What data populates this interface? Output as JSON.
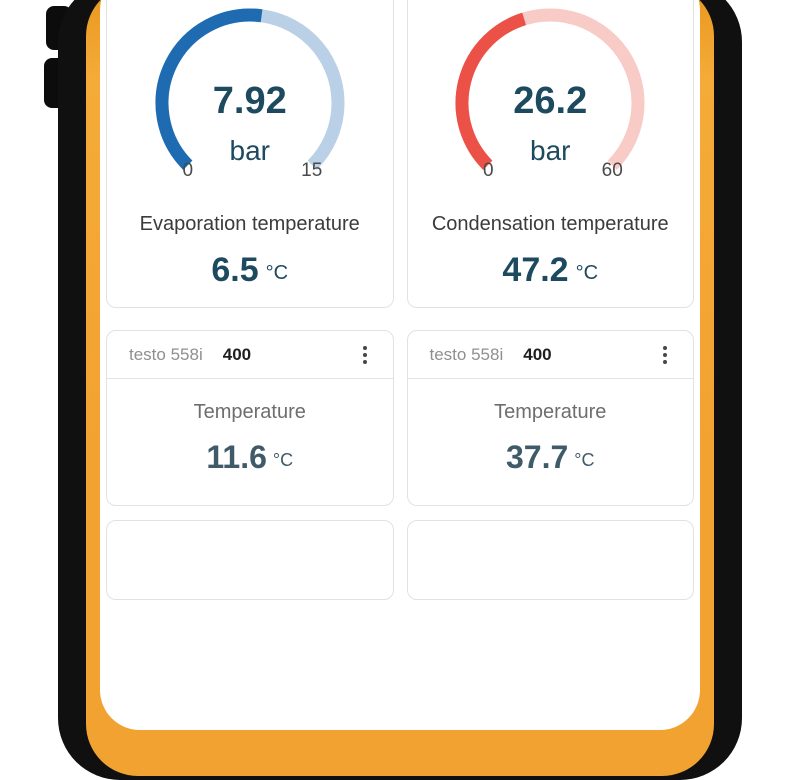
{
  "phone": {
    "frame_color": "#101010",
    "case_color": "#f2a231"
  },
  "gauges": [
    {
      "display_value": "7.92",
      "unit": "bar",
      "value": 7.92,
      "min": 0,
      "max": 15,
      "min_label": "0",
      "max_label": "15",
      "fill_color": "#1e6bb2",
      "track_color": "#bad0e6",
      "param_label": "Evaporation temperature",
      "param_value": "6.5",
      "param_unit": "°C"
    },
    {
      "display_value": "26.2",
      "unit": "bar",
      "value": 26.2,
      "min": 0,
      "max": 60,
      "min_label": "0",
      "max_label": "60",
      "fill_color": "#ec5148",
      "track_color": "#f8cbc6",
      "param_label": "Condensation temperature",
      "param_value": "47.2",
      "param_unit": "°C"
    }
  ],
  "devices": [
    {
      "name": "testo 558i",
      "id_badge": "400",
      "param_label": "Temperature",
      "value": "11.6",
      "unit": "°C"
    },
    {
      "name": "testo 558i",
      "id_badge": "400",
      "param_label": "Temperature",
      "value": "37.7",
      "unit": "°C"
    }
  ]
}
